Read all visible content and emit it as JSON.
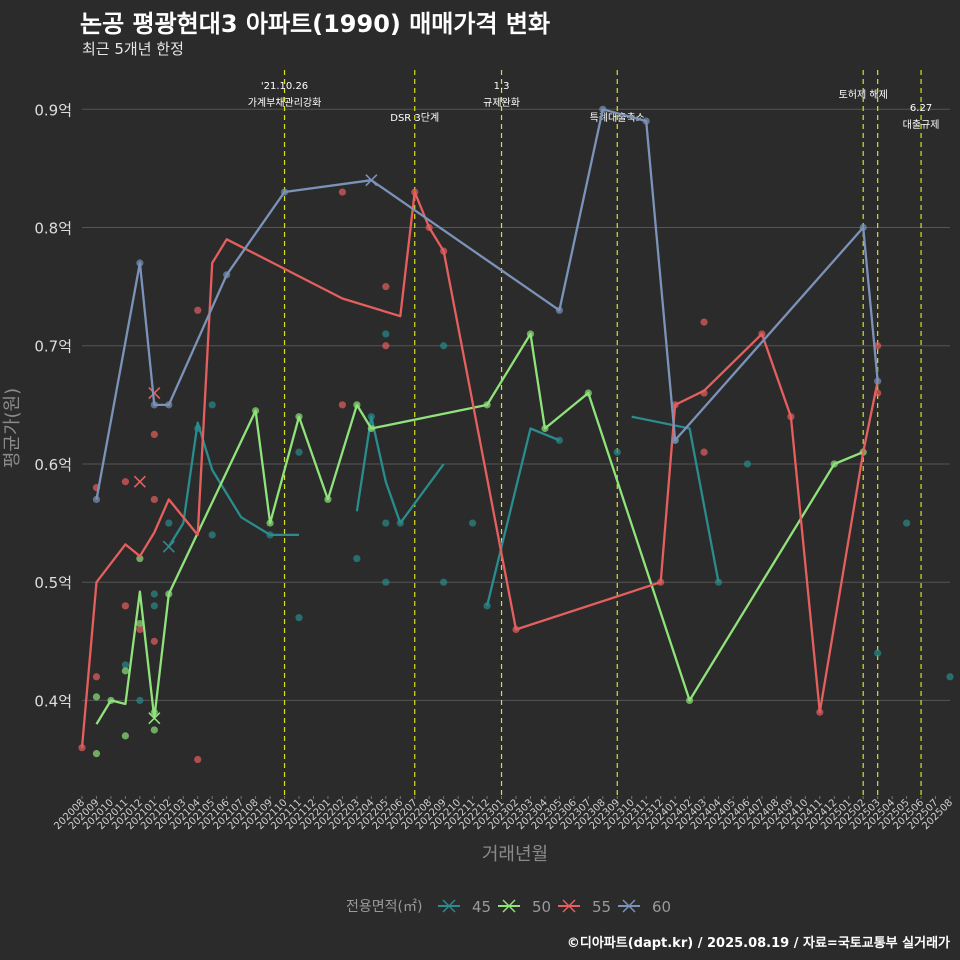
{
  "title": "논공 평광현대3 아파트(1990) 매매가격 변화",
  "subtitle": "최근 5개년 한정",
  "caption": "©디아파트(dapt.kr) / 2025.08.19 / 자료=국토교통부 실거래가",
  "colors": {
    "background": "#2b2b2b",
    "grid": "#555555",
    "event_line": "#d8e31e"
  },
  "chart_data": {
    "type": "line",
    "xlabel": "거래년월",
    "ylabel": "평균가(원)",
    "ylim": [
      0.32,
      0.94
    ],
    "yticks": [
      {
        "v": 0.4,
        "label": "0.4억"
      },
      {
        "v": 0.5,
        "label": "0.5억"
      },
      {
        "v": 0.6,
        "label": "0.6억"
      },
      {
        "v": 0.7,
        "label": "0.7억"
      },
      {
        "v": 0.8,
        "label": "0.8억"
      },
      {
        "v": 0.9,
        "label": "0.9억"
      }
    ],
    "categories": [
      "202008",
      "202009",
      "202010",
      "202011",
      "202012",
      "202101",
      "202102",
      "202103",
      "202104",
      "202105",
      "202106",
      "202107",
      "202108",
      "202109",
      "202110",
      "202111",
      "202112",
      "202201",
      "202202",
      "202203",
      "202204",
      "202205",
      "202206",
      "202207",
      "202208",
      "202209",
      "202210",
      "202211",
      "202212",
      "202301",
      "202302",
      "202303",
      "202304",
      "202305",
      "202306",
      "202307",
      "202308",
      "202309",
      "202310",
      "202311",
      "202312",
      "202401",
      "202402",
      "202403",
      "202404",
      "202405",
      "202406",
      "202407",
      "202408",
      "202409",
      "202410",
      "202411",
      "202412",
      "202501",
      "202502",
      "202503",
      "202504",
      "202505",
      "202506",
      "202507",
      "202508"
    ],
    "events": [
      {
        "x": "202110",
        "lines": [
          "'21.10.26",
          "가계부채관리강화"
        ],
        "pos": "high"
      },
      {
        "x": "202207",
        "lines": [
          "DSR 3단계"
        ],
        "pos": "low"
      },
      {
        "x": "202301",
        "lines": [
          "1.3",
          "규제완화"
        ],
        "pos": "high"
      },
      {
        "x": "202309",
        "lines": [
          "특례대출축소"
        ],
        "pos": "low"
      },
      {
        "x": "202502",
        "lines": [
          "토허제 해제"
        ],
        "pos": "mid"
      },
      {
        "x": "202503",
        "lines": [],
        "pos": "none"
      },
      {
        "x": "202506",
        "lines": [
          "6.27",
          "대출규제"
        ],
        "pos": "lower"
      }
    ],
    "legend_title": "전용면적(㎡)",
    "legend_position": "bottom",
    "series": [
      {
        "name": "45",
        "color": "#2a8c8c",
        "line": [
          {
            "seg": [
              [
                "202102",
                0.53
              ],
              [
                "202103",
                0.55
              ],
              [
                "202104",
                0.635
              ],
              [
                "202105",
                0.595
              ],
              [
                "202107",
                0.555
              ],
              [
                "202109",
                0.54
              ],
              [
                "202110",
                0.54
              ],
              [
                "202111",
                0.54
              ]
            ]
          },
          {
            "seg": [
              [
                "202203",
                0.56
              ],
              [
                "202204",
                0.64
              ],
              [
                "202205",
                0.585
              ],
              [
                "202206",
                0.55
              ],
              [
                "202209",
                0.6
              ]
            ]
          },
          {
            "seg": [
              [
                "202212",
                0.48
              ],
              [
                "202303",
                0.63
              ],
              [
                "202305",
                0.62
              ]
            ]
          },
          {
            "seg": [
              [
                "202310",
                0.64
              ],
              [
                "202402",
                0.63
              ],
              [
                "202404",
                0.5
              ]
            ]
          }
        ],
        "points": [
          [
            "202011",
            0.43
          ],
          [
            "202012",
            0.4
          ],
          [
            "202101",
            0.48
          ],
          [
            "202101",
            0.49
          ],
          [
            "202102",
            0.55
          ],
          [
            "202104",
            0.63
          ],
          [
            "202105",
            0.65
          ],
          [
            "202105",
            0.54
          ],
          [
            "202109",
            0.54
          ],
          [
            "202111",
            0.61
          ],
          [
            "202111",
            0.47
          ],
          [
            "202203",
            0.52
          ],
          [
            "202204",
            0.64
          ],
          [
            "202205",
            0.71
          ],
          [
            "202205",
            0.55
          ],
          [
            "202205",
            0.5
          ],
          [
            "202206",
            0.55
          ],
          [
            "202209",
            0.7
          ],
          [
            "202209",
            0.5
          ],
          [
            "202211",
            0.55
          ],
          [
            "202212",
            0.48
          ],
          [
            "202305",
            0.62
          ],
          [
            "202309",
            0.61
          ],
          [
            "202401",
            0.62
          ],
          [
            "202404",
            0.5
          ],
          [
            "202406",
            0.6
          ],
          [
            "202503",
            0.44
          ],
          [
            "202505",
            0.55
          ],
          [
            "202508",
            0.42
          ]
        ],
        "crosses": [
          [
            "202102",
            0.53
          ]
        ]
      },
      {
        "name": "50",
        "color": "#8fe37a",
        "line": [
          {
            "seg": [
              [
                "202009",
                0.38
              ],
              [
                "202010",
                0.4
              ],
              [
                "202011",
                0.397
              ],
              [
                "202012",
                0.492
              ],
              [
                "202101",
                0.385
              ],
              [
                "202102",
                0.49
              ],
              [
                "202108",
                0.645
              ],
              [
                "202109",
                0.55
              ],
              [
                "202111",
                0.64
              ],
              [
                "202201",
                0.57
              ],
              [
                "202203",
                0.65
              ],
              [
                "202204",
                0.63
              ],
              [
                "202212",
                0.65
              ],
              [
                "202303",
                0.71
              ],
              [
                "202304",
                0.63
              ],
              [
                "202307",
                0.66
              ],
              [
                "202402",
                0.4
              ],
              [
                "202412",
                0.6
              ],
              [
                "202502",
                0.61
              ]
            ]
          }
        ],
        "points": [
          [
            "202009",
            0.403
          ],
          [
            "202009",
            0.355
          ],
          [
            "202010",
            0.4
          ],
          [
            "202011",
            0.37
          ],
          [
            "202011",
            0.425
          ],
          [
            "202012",
            0.52
          ],
          [
            "202012",
            0.465
          ],
          [
            "202101",
            0.375
          ],
          [
            "202101",
            0.39
          ],
          [
            "202102",
            0.49
          ],
          [
            "202108",
            0.645
          ],
          [
            "202109",
            0.55
          ],
          [
            "202111",
            0.64
          ],
          [
            "202201",
            0.57
          ],
          [
            "202203",
            0.65
          ],
          [
            "202204",
            0.63
          ],
          [
            "202212",
            0.65
          ],
          [
            "202303",
            0.71
          ],
          [
            "202304",
            0.63
          ],
          [
            "202307",
            0.66
          ],
          [
            "202402",
            0.4
          ],
          [
            "202412",
            0.6
          ],
          [
            "202502",
            0.61
          ]
        ],
        "crosses": [
          [
            "202101",
            0.385
          ]
        ]
      },
      {
        "name": "55",
        "color": "#e55f5f",
        "line": [
          {
            "seg": [
              [
                "202008",
                0.36
              ],
              [
                "202009",
                0.5
              ],
              [
                "202011",
                0.532
              ],
              [
                "202012",
                0.522
              ],
              [
                "202101",
                0.542
              ],
              [
                "202102",
                0.57
              ],
              [
                "202104",
                0.54
              ],
              [
                "202105",
                0.77
              ],
              [
                "202106",
                0.79
              ],
              [
                "202202",
                0.74
              ],
              [
                "202206",
                0.725
              ],
              [
                "202207",
                0.83
              ],
              [
                "202208",
                0.8
              ],
              [
                "202209",
                0.78
              ],
              [
                "202302",
                0.46
              ],
              [
                "202312",
                0.5
              ],
              [
                "202401",
                0.65
              ],
              [
                "202403",
                0.662
              ],
              [
                "202407",
                0.71
              ],
              [
                "202409",
                0.64
              ],
              [
                "202411",
                0.39
              ],
              [
                "202502",
                0.61
              ],
              [
                "202503",
                0.67
              ]
            ]
          }
        ],
        "points": [
          [
            "202008",
            0.36
          ],
          [
            "202009",
            0.58
          ],
          [
            "202009",
            0.42
          ],
          [
            "202011",
            0.585
          ],
          [
            "202011",
            0.48
          ],
          [
            "202012",
            0.46
          ],
          [
            "202101",
            0.625
          ],
          [
            "202101",
            0.57
          ],
          [
            "202101",
            0.45
          ],
          [
            "202104",
            0.73
          ],
          [
            "202104",
            0.35
          ],
          [
            "202202",
            0.83
          ],
          [
            "202202",
            0.65
          ],
          [
            "202205",
            0.75
          ],
          [
            "202205",
            0.7
          ],
          [
            "202207",
            0.83
          ],
          [
            "202208",
            0.8
          ],
          [
            "202209",
            0.78
          ],
          [
            "202302",
            0.46
          ],
          [
            "202312",
            0.5
          ],
          [
            "202401",
            0.65
          ],
          [
            "202403",
            0.72
          ],
          [
            "202403",
            0.66
          ],
          [
            "202403",
            0.61
          ],
          [
            "202407",
            0.71
          ],
          [
            "202409",
            0.64
          ],
          [
            "202411",
            0.39
          ],
          [
            "202503",
            0.7
          ],
          [
            "202503",
            0.66
          ]
        ],
        "crosses": [
          [
            "202012",
            0.585
          ],
          [
            "202101",
            0.66
          ]
        ]
      },
      {
        "name": "60",
        "color": "#7b93b8",
        "line": [
          {
            "seg": [
              [
                "202009",
                0.57
              ],
              [
                "202012",
                0.77
              ],
              [
                "202101",
                0.65
              ],
              [
                "202102",
                0.65
              ],
              [
                "202106",
                0.76
              ],
              [
                "202110",
                0.83
              ],
              [
                "202204",
                0.84
              ],
              [
                "202305",
                0.73
              ],
              [
                "202308",
                0.9
              ],
              [
                "202311",
                0.89
              ],
              [
                "202401",
                0.62
              ],
              [
                "202502",
                0.8
              ],
              [
                "202503",
                0.67
              ]
            ]
          }
        ],
        "points": [
          [
            "202009",
            0.57
          ],
          [
            "202012",
            0.77
          ],
          [
            "202101",
            0.65
          ],
          [
            "202102",
            0.65
          ],
          [
            "202106",
            0.76
          ],
          [
            "202110",
            0.83
          ],
          [
            "202305",
            0.73
          ],
          [
            "202308",
            0.9
          ],
          [
            "202311",
            0.89
          ],
          [
            "202401",
            0.62
          ],
          [
            "202502",
            0.8
          ],
          [
            "202503",
            0.67
          ]
        ],
        "crosses": [
          [
            "202204",
            0.84
          ]
        ]
      }
    ]
  }
}
